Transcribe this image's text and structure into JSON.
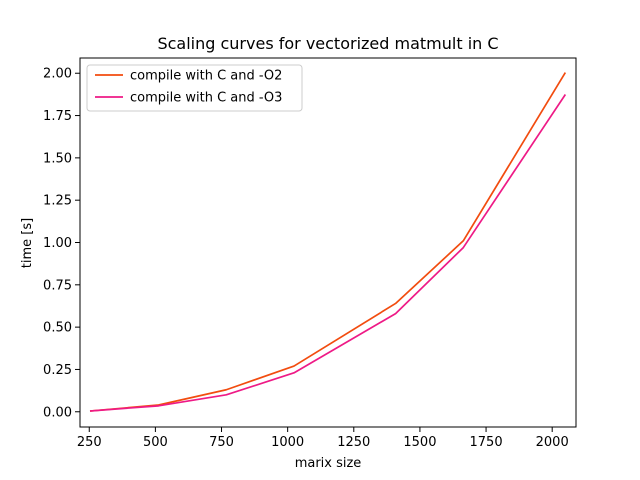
{
  "chart_data": {
    "type": "line",
    "title": "Scaling curves for vectorized matmult in C",
    "xlabel": "marix size",
    "ylabel": "time [s]",
    "xlim": [
      215,
      2090
    ],
    "ylim": [
      -0.09,
      2.09
    ],
    "xticks": [
      250,
      500,
      750,
      1000,
      1250,
      1500,
      1750,
      2000
    ],
    "xtick_labels": [
      "250",
      "500",
      "750",
      "1000",
      "1250",
      "1500",
      "1750",
      "2000"
    ],
    "yticks": [
      0.0,
      0.25,
      0.5,
      0.75,
      1.0,
      1.25,
      1.5,
      1.75,
      2.0
    ],
    "ytick_labels": [
      "0.00",
      "0.25",
      "0.50",
      "0.75",
      "1.00",
      "1.25",
      "1.50",
      "1.75",
      "2.00"
    ],
    "grid": false,
    "legend_position": "top-left",
    "x": [
      256,
      512,
      768,
      1024,
      1408,
      1664,
      2048
    ],
    "series": [
      {
        "name": "compile with C and -O2",
        "color": "#f24c0f",
        "values": [
          0.005,
          0.04,
          0.13,
          0.27,
          0.64,
          1.01,
          2.0
        ]
      },
      {
        "name": "compile with C and -O3",
        "color": "#ee1a86",
        "values": [
          0.005,
          0.035,
          0.1,
          0.23,
          0.58,
          0.97,
          1.87
        ]
      }
    ]
  }
}
